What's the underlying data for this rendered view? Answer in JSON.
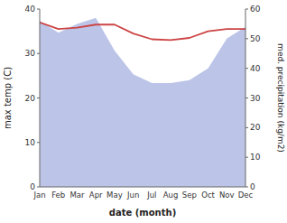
{
  "chart_data": {
    "type": "line",
    "xlabel": "date (month)",
    "ylabel": "max temp (C)",
    "y2label": "med. precipitation (kg/m2)",
    "categories": [
      "Jan",
      "Feb",
      "Mar",
      "Apr",
      "May",
      "Jun",
      "Jul",
      "Aug",
      "Sep",
      "Oct",
      "Nov",
      "Dec"
    ],
    "series": [
      {
        "type": "area",
        "axis": "y2",
        "color": "#bcc5e8",
        "values": [
          56.0,
          52.0,
          55.0,
          57.0,
          46.0,
          38.0,
          35.0,
          35.0,
          36.0,
          40.0,
          50.0,
          54.0
        ]
      },
      {
        "type": "line",
        "color": "#cc4444",
        "values": [
          37.0,
          35.5,
          35.8,
          36.5,
          36.5,
          34.5,
          33.2,
          33.0,
          33.5,
          35.0,
          35.5,
          35.5
        ]
      }
    ],
    "ylim": [
      0,
      40
    ],
    "yticks": [
      0,
      10,
      20,
      30,
      40
    ],
    "y2lim": [
      0,
      60
    ],
    "y2ticks": [
      0,
      10,
      20,
      30,
      40,
      50,
      60
    ],
    "grid": false
  }
}
